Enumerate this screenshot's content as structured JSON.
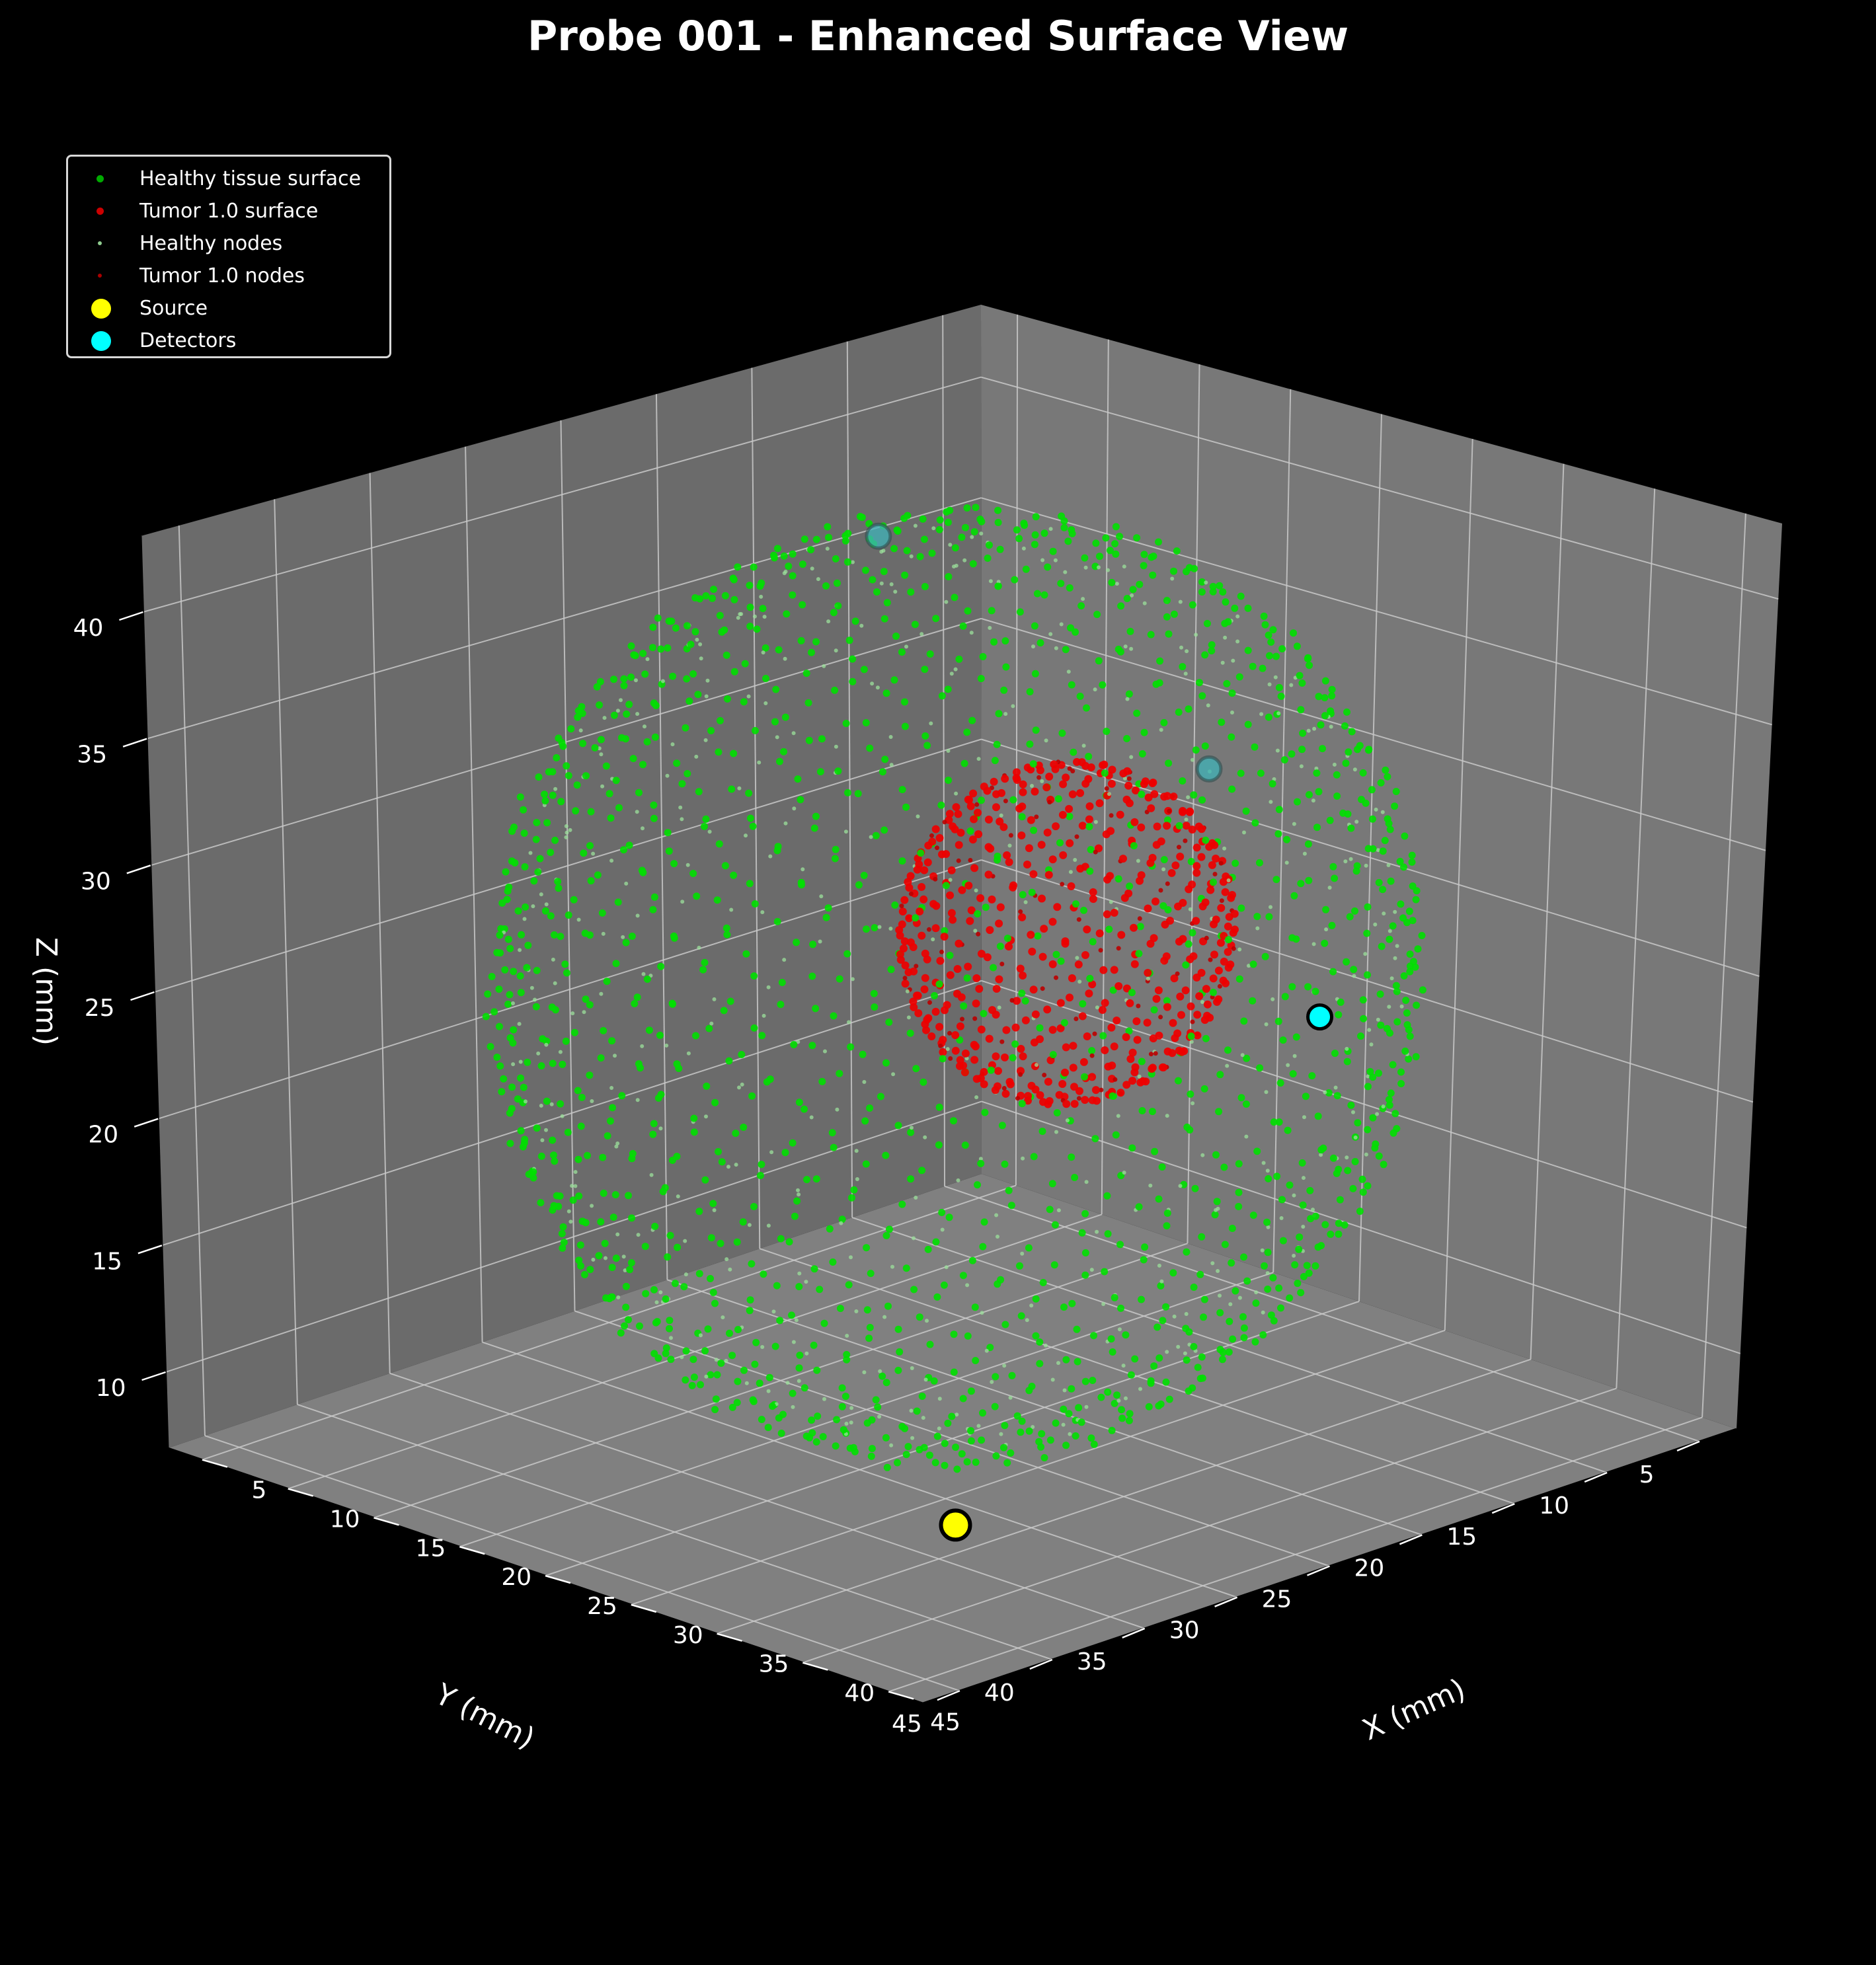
{
  "chart_data": {
    "type": "scatter",
    "projection": "3d",
    "title": "Probe 001 - Enhanced Surface View",
    "xlabel": "X (mm)",
    "ylabel": "Y (mm)",
    "zlabel": "Z (mm)",
    "xlim": [
      3,
      47
    ],
    "ylim": [
      3,
      47
    ],
    "zlim": [
      7,
      43
    ],
    "x_ticks": [
      5,
      10,
      15,
      20,
      25,
      30,
      35,
      40,
      45
    ],
    "y_ticks": [
      5,
      10,
      15,
      20,
      25,
      30,
      35,
      40,
      45
    ],
    "z_ticks": [
      10,
      15,
      20,
      25,
      30,
      35,
      40
    ],
    "grid": true,
    "legend_position": "top-left",
    "healthy_sphere": {
      "center": [
        25,
        25,
        25
      ],
      "radius": 18
    },
    "tumor_sphere": {
      "center": [
        28,
        22,
        27
      ],
      "radius": 6.5
    },
    "series": [
      {
        "name": "Healthy tissue surface",
        "color": "#00dd00"
      },
      {
        "name": "Tumor 1.0 surface",
        "color": "#dd0000"
      },
      {
        "name": "Healthy nodes",
        "color": "#8fdc8f"
      },
      {
        "name": "Tumor 1.0 nodes",
        "color": "#bb0000"
      },
      {
        "name": "Source",
        "color": "#ffff00",
        "points": [
          [
            37,
            36,
            9
          ]
        ]
      },
      {
        "name": "Detectors",
        "color": "#00ffff",
        "points": [
          [
            36,
            16,
            24
          ],
          [
            11,
            16,
            38
          ],
          [
            19,
            6,
            28
          ]
        ]
      }
    ]
  }
}
